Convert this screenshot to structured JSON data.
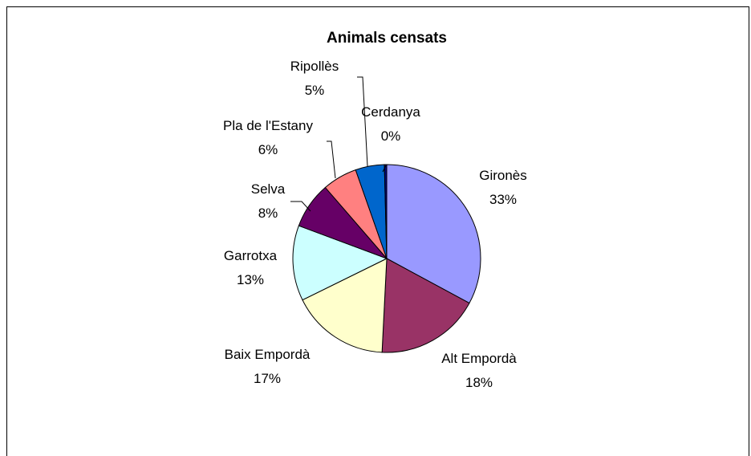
{
  "chart_data": {
    "type": "pie",
    "title": "Animals censats",
    "slices": [
      {
        "label": "Gironès",
        "percent_label": "33%",
        "value": 33,
        "color": "#9999ff"
      },
      {
        "label": "Alt Empordà",
        "percent_label": "18%",
        "value": 18,
        "color": "#993366"
      },
      {
        "label": "Baix Empordà",
        "percent_label": "17%",
        "value": 17,
        "color": "#ffffcc"
      },
      {
        "label": "Garrotxa",
        "percent_label": "13%",
        "value": 13,
        "color": "#ccffff"
      },
      {
        "label": "Selva",
        "percent_label": "8%",
        "value": 8,
        "color": "#660066"
      },
      {
        "label": "Pla de l'Estany",
        "percent_label": "6%",
        "value": 6,
        "color": "#ff8080"
      },
      {
        "label": "Ripollès",
        "percent_label": "5%",
        "value": 5,
        "color": "#0066cc"
      },
      {
        "label": "Cerdanya",
        "percent_label": "0%",
        "value": 0.4,
        "color": "#000080"
      }
    ],
    "legend": "none"
  }
}
